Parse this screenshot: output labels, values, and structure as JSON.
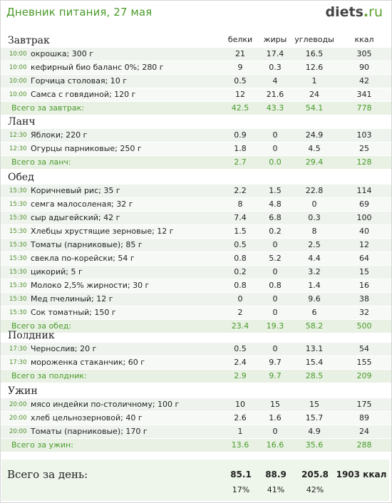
{
  "header": {
    "title": "Дневник питания, 27 мая",
    "logo_main": "diets",
    "logo_dot": ".",
    "logo_tld": "ru"
  },
  "columns": {
    "protein": "белки",
    "fat": "жиры",
    "carbs": "углеводы",
    "kcal": "ккал"
  },
  "sections": [
    {
      "name": "Завтрак",
      "items": [
        {
          "time": "10:00",
          "food": "окрошка; 300 г",
          "p": "21",
          "f": "17.4",
          "c": "16.5",
          "k": "305"
        },
        {
          "time": "10:00",
          "food": "кефирный био баланс 0%; 280 г",
          "p": "9",
          "f": "0.3",
          "c": "12.6",
          "k": "90"
        },
        {
          "time": "10:00",
          "food": "Горчица столовая; 10 г",
          "p": "0.5",
          "f": "4",
          "c": "1",
          "k": "42"
        },
        {
          "time": "10:00",
          "food": "Самса с говядиной; 120 г",
          "p": "12",
          "f": "21.6",
          "c": "24",
          "k": "341"
        }
      ],
      "total": {
        "label": "Всего за завтрак:",
        "p": "42.5",
        "f": "43.3",
        "c": "54.1",
        "k": "778"
      }
    },
    {
      "name": "Ланч",
      "items": [
        {
          "time": "12:30",
          "food": "Яблоки; 220 г",
          "p": "0.9",
          "f": "0",
          "c": "24.9",
          "k": "103"
        },
        {
          "time": "12:30",
          "food": "Огурцы парниковые; 250 г",
          "p": "1.8",
          "f": "0",
          "c": "4.5",
          "k": "25"
        }
      ],
      "total": {
        "label": "Всего за ланч:",
        "p": "2.7",
        "f": "0.0",
        "c": "29.4",
        "k": "128"
      }
    },
    {
      "name": "Обед",
      "items": [
        {
          "time": "15:30",
          "food": "Коричневый рис; 35 г",
          "p": "2.2",
          "f": "1.5",
          "c": "22.8",
          "k": "114"
        },
        {
          "time": "15:30",
          "food": "семга малосоленая; 32 г",
          "p": "8",
          "f": "4.8",
          "c": "0",
          "k": "69"
        },
        {
          "time": "15:30",
          "food": "сыр адыгейский; 42 г",
          "p": "7.4",
          "f": "6.8",
          "c": "0.3",
          "k": "100"
        },
        {
          "time": "15:30",
          "food": "Хлебцы хрустящие зерновые; 12 г",
          "p": "1.5",
          "f": "0.2",
          "c": "8",
          "k": "40"
        },
        {
          "time": "15:30",
          "food": "Томаты (парниковые); 85 г",
          "p": "0.5",
          "f": "0",
          "c": "2.5",
          "k": "12"
        },
        {
          "time": "15:30",
          "food": "свекла по-корейски; 54 г",
          "p": "0.8",
          "f": "5.2",
          "c": "4.4",
          "k": "64"
        },
        {
          "time": "15:30",
          "food": "цикорий; 5 г",
          "p": "0.2",
          "f": "0",
          "c": "3.2",
          "k": "15"
        },
        {
          "time": "15:30",
          "food": "Молоко 2,5% жирности; 30 г",
          "p": "0.8",
          "f": "0.8",
          "c": "1.4",
          "k": "16"
        },
        {
          "time": "15:30",
          "food": "Мед пчелиный; 12 г",
          "p": "0",
          "f": "0",
          "c": "9.6",
          "k": "38"
        },
        {
          "time": "15:30",
          "food": "Сок томатный; 150 г",
          "p": "2",
          "f": "0",
          "c": "6",
          "k": "32"
        }
      ],
      "total": {
        "label": "Всего за обед:",
        "p": "23.4",
        "f": "19.3",
        "c": "58.2",
        "k": "500"
      }
    },
    {
      "name": "Полдник",
      "items": [
        {
          "time": "17:30",
          "food": "Чернослив; 20 г",
          "p": "0.5",
          "f": "0",
          "c": "13.1",
          "k": "54"
        },
        {
          "time": "17:30",
          "food": "мороженка стаканчик; 60 г",
          "p": "2.4",
          "f": "9.7",
          "c": "15.4",
          "k": "155"
        }
      ],
      "total": {
        "label": "Всего за полдник:",
        "p": "2.9",
        "f": "9.7",
        "c": "28.5",
        "k": "209"
      }
    },
    {
      "name": "Ужин",
      "items": [
        {
          "time": "20:00",
          "food": "мясо индейки по-столичному; 100 г",
          "p": "10",
          "f": "15",
          "c": "15",
          "k": "175"
        },
        {
          "time": "20:00",
          "food": "хлеб цельнозерновой; 40 г",
          "p": "2.6",
          "f": "1.6",
          "c": "15.7",
          "k": "89"
        },
        {
          "time": "20:00",
          "food": "Томаты (парниковые); 170 г",
          "p": "1",
          "f": "0",
          "c": "4.9",
          "k": "24"
        }
      ],
      "total": {
        "label": "Всего за ужин:",
        "p": "13.6",
        "f": "16.6",
        "c": "35.6",
        "k": "288"
      }
    }
  ],
  "day": {
    "label": "Всего за день:",
    "p": "85.1",
    "f": "88.9",
    "c": "205.8",
    "k": "1903 ккал",
    "p_pct": "17%",
    "f_pct": "41%",
    "c_pct": "42%"
  },
  "colors": {
    "accent": "#4a9a2a",
    "row_alt": "#eef3ee",
    "total_bg": "#e8f1e4"
  }
}
